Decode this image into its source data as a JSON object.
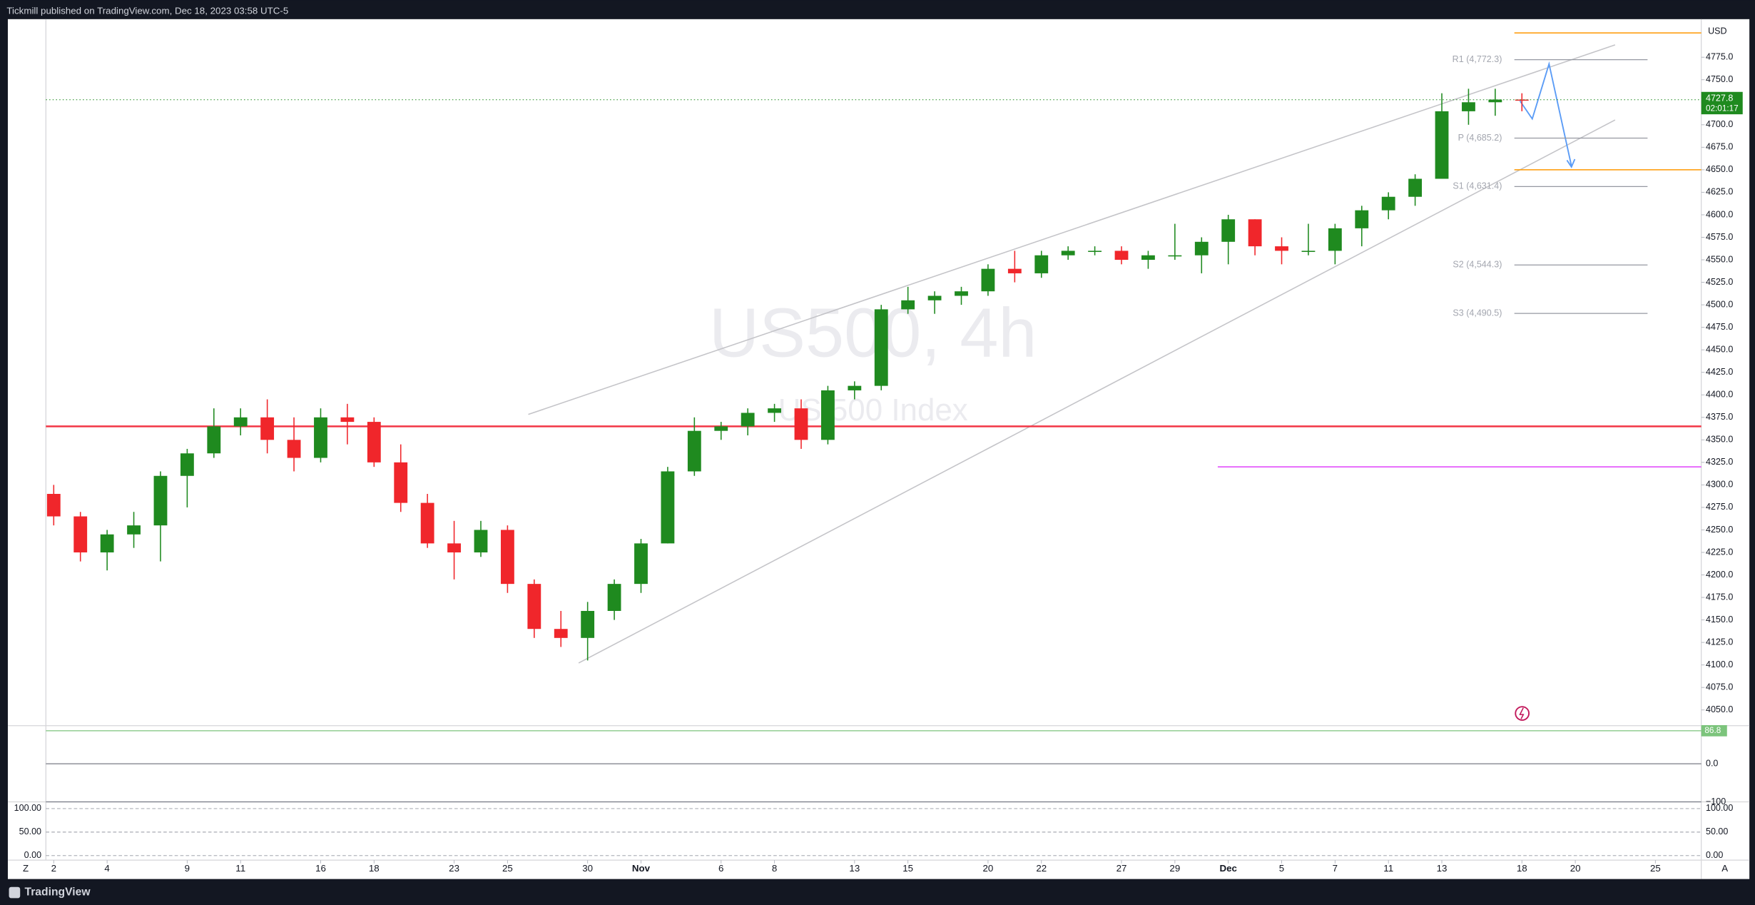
{
  "header": {
    "text": "Tickmill published on TradingView.com, Dec 18, 2023 03:58 UTC-5"
  },
  "footer": {
    "brand": "TradingView"
  },
  "toolbar": {
    "left": "Z",
    "right": "A"
  },
  "chart_data": {
    "type": "candlestick",
    "watermark": {
      "symbol": "US500, 4h",
      "description": "US 500 Index"
    },
    "currency": "USD",
    "countdown": "02:01:17",
    "up_color": "#1f8a1f",
    "down_color": "#f0262b",
    "categories": [
      "Oct 2",
      "Oct 3",
      "Oct 4",
      "Oct 5",
      "Oct 6",
      "Oct 9",
      "Oct 10",
      "Oct 11",
      "Oct 12",
      "Oct 13",
      "Oct 16",
      "Oct 17",
      "Oct 18",
      "Oct 19",
      "Oct 20",
      "Oct 23",
      "Oct 24",
      "Oct 25",
      "Oct 26",
      "Oct 27",
      "Oct 30",
      "Oct 31",
      "Nov 1",
      "Nov 2",
      "Nov 3",
      "Nov 6",
      "Nov 7",
      "Nov 8",
      "Nov 9",
      "Nov 10",
      "Nov 13",
      "Nov 14",
      "Nov 15",
      "Nov 16",
      "Nov 17",
      "Nov 20",
      "Nov 21",
      "Nov 22",
      "Nov 23",
      "Nov 24",
      "Nov 27",
      "Nov 28",
      "Nov 29",
      "Nov 30",
      "Dec 1",
      "Dec 4",
      "Dec 5",
      "Dec 6",
      "Dec 7",
      "Dec 8",
      "Dec 11",
      "Dec 12",
      "Dec 13",
      "Dec 14",
      "Dec 15",
      "Dec 18",
      "Dec 19",
      "Dec 20",
      "Dec 21",
      "Dec 22",
      "Dec 25"
    ],
    "open": [
      4290,
      4265,
      4225,
      4245,
      4255,
      4310,
      4335,
      4365,
      4375,
      4350,
      4330,
      4375,
      4370,
      4325,
      4280,
      4235,
      4225,
      4250,
      4190,
      4140,
      4130,
      4160,
      4190,
      4235,
      4315,
      4360,
      4365,
      4380,
      4385,
      4350,
      4405,
      4410,
      4495,
      4505,
      4510,
      4515,
      4540,
      4535,
      4555,
      4560,
      4560,
      4550,
      4555,
      4555,
      4570,
      4595,
      4565,
      4560,
      4560,
      4585,
      4605,
      4620,
      4640,
      4715,
      4725,
      4728,
      null,
      null,
      null,
      null,
      null
    ],
    "high": [
      4300,
      4270,
      4250,
      4270,
      4315,
      4340,
      4385,
      4385,
      4395,
      4375,
      4385,
      4390,
      4375,
      4345,
      4290,
      4260,
      4260,
      4255,
      4195,
      4160,
      4170,
      4195,
      4240,
      4320,
      4375,
      4370,
      4385,
      4390,
      4395,
      4410,
      4415,
      4500,
      4520,
      4515,
      4520,
      4545,
      4560,
      4560,
      4565,
      4565,
      4565,
      4560,
      4590,
      4575,
      4600,
      4595,
      4575,
      4590,
      4590,
      4610,
      4625,
      4645,
      4735,
      4740,
      4740,
      4735,
      null,
      null,
      null,
      null,
      null
    ],
    "low": [
      4255,
      4215,
      4205,
      4230,
      4215,
      4275,
      4330,
      4355,
      4335,
      4315,
      4325,
      4345,
      4320,
      4270,
      4230,
      4195,
      4220,
      4180,
      4130,
      4120,
      4105,
      4150,
      4180,
      4235,
      4310,
      4350,
      4355,
      4370,
      4340,
      4345,
      4395,
      4405,
      4490,
      4490,
      4500,
      4510,
      4525,
      4530,
      4550,
      4555,
      4545,
      4540,
      4550,
      4535,
      4545,
      4555,
      4545,
      4555,
      4545,
      4565,
      4595,
      4610,
      4640,
      4700,
      4710,
      4715,
      null,
      null,
      null,
      null,
      null
    ],
    "close": [
      4265,
      4225,
      4245,
      4255,
      4310,
      4335,
      4365,
      4375,
      4350,
      4330,
      4375,
      4370,
      4325,
      4280,
      4235,
      4225,
      4250,
      4190,
      4140,
      4130,
      4160,
      4190,
      4235,
      4315,
      4360,
      4365,
      4380,
      4385,
      4350,
      4405,
      4410,
      4495,
      4505,
      4510,
      4515,
      4540,
      4535,
      4555,
      4560,
      4560,
      4550,
      4555,
      4555,
      4570,
      4595,
      4565,
      4560,
      4560,
      4585,
      4605,
      4620,
      4640,
      4715,
      4725,
      4728,
      4727.8,
      null,
      null,
      null,
      null,
      null
    ],
    "xticks": [
      {
        "value": "Oct 2",
        "label": "2"
      },
      {
        "value": "Oct 4",
        "label": "4"
      },
      {
        "value": "Oct 9",
        "label": "9"
      },
      {
        "value": "Oct 11",
        "label": "11"
      },
      {
        "value": "Oct 16",
        "label": "16"
      },
      {
        "value": "Oct 18",
        "label": "18"
      },
      {
        "value": "Oct 23",
        "label": "23"
      },
      {
        "value": "Oct 25",
        "label": "25"
      },
      {
        "value": "Oct 30",
        "label": "30"
      },
      {
        "value": "Nov 1",
        "label": "Nov"
      },
      {
        "value": "Nov 6",
        "label": "6"
      },
      {
        "value": "Nov 8",
        "label": "8"
      },
      {
        "value": "Nov 13",
        "label": "13"
      },
      {
        "value": "Nov 15",
        "label": "15"
      },
      {
        "value": "Nov 20",
        "label": "20"
      },
      {
        "value": "Nov 22",
        "label": "22"
      },
      {
        "value": "Nov 27",
        "label": "27"
      },
      {
        "value": "Nov 29",
        "label": "29"
      },
      {
        "value": "Dec 1",
        "label": "Dec"
      },
      {
        "value": "Dec 5",
        "label": "5"
      },
      {
        "value": "Dec 7",
        "label": "7"
      },
      {
        "value": "Dec 11",
        "label": "11"
      },
      {
        "value": "Dec 13",
        "label": "13"
      },
      {
        "value": "Dec 18",
        "label": "18"
      },
      {
        "value": "Dec 20",
        "label": "20"
      },
      {
        "value": "Dec 25",
        "label": "25"
      }
    ],
    "ylim": [
      4032.5,
      4817.3
    ],
    "yticks": [
      {
        "value": 4050,
        "label": "4050.0"
      },
      {
        "value": 4075,
        "label": "4075.0"
      },
      {
        "value": 4100,
        "label": "4100.0"
      },
      {
        "value": 4125,
        "label": "4125.0"
      },
      {
        "value": 4150,
        "label": "4150.0"
      },
      {
        "value": 4175,
        "label": "4175.0"
      },
      {
        "value": 4200,
        "label": "4200.0"
      },
      {
        "value": 4225,
        "label": "4225.0"
      },
      {
        "value": 4250,
        "label": "4250.0"
      },
      {
        "value": 4275,
        "label": "4275.0"
      },
      {
        "value": 4300,
        "label": "4300.0"
      },
      {
        "value": 4325,
        "label": "4325.0"
      },
      {
        "value": 4350,
        "label": "4350.0"
      },
      {
        "value": 4375,
        "label": "4375.0"
      },
      {
        "value": 4400,
        "label": "4400.0"
      },
      {
        "value": 4425,
        "label": "4425.0"
      },
      {
        "value": 4450,
        "label": "4450.0"
      },
      {
        "value": 4475,
        "label": "4475.0"
      },
      {
        "value": 4500,
        "label": "4500.0"
      },
      {
        "value": 4525,
        "label": "4525.0"
      },
      {
        "value": 4550,
        "label": "4550.0"
      },
      {
        "value": 4575,
        "label": "4575.0"
      },
      {
        "value": 4600,
        "label": "4600.0"
      },
      {
        "value": 4625,
        "label": "4625.0"
      },
      {
        "value": 4650,
        "label": "4650.0"
      },
      {
        "value": 4675,
        "label": "4675.0"
      },
      {
        "value": 4700,
        "label": "4700.0"
      },
      {
        "value": 4725,
        "label": "4725.0"
      },
      {
        "value": 4750,
        "label": "4750.0"
      },
      {
        "value": 4775,
        "label": "4775.0"
      }
    ],
    "pivots": [
      {
        "label": "R1 (4,772.3)",
        "value": 4772.3
      },
      {
        "label": "P (4,685.2)",
        "value": 4685.2
      },
      {
        "label": "S1 (4,631.4)",
        "value": 4631.4
      },
      {
        "label": "S2 (4,544.3)",
        "value": 4544.3
      },
      {
        "label": "S3 (4,490.5)",
        "value": 4490.5
      }
    ],
    "levels": {
      "horizontal_line": {
        "value": 4365,
        "color": "#f23645"
      },
      "ray": {
        "value": 4320,
        "color": "#e040fb"
      },
      "target_high": {
        "value": 4802,
        "color": "#ff9800"
      },
      "target_low": {
        "value": 4650,
        "color": "#ff9800"
      }
    },
    "oscillator": {
      "ylim": [
        -100,
        100
      ],
      "yticks": [
        {
          "value": 0,
          "label": "0.0"
        },
        {
          "value": -100,
          "label": "−100"
        }
      ],
      "last": 86.8,
      "color": "#7cc47c"
    },
    "stochastic": {
      "ylim": [
        -9.5,
        114.3
      ],
      "yticks": [
        {
          "value": 100,
          "label": "100.00"
        },
        {
          "value": 50,
          "label": "50.00"
        },
        {
          "value": 0,
          "label": "0.00"
        }
      ]
    }
  }
}
